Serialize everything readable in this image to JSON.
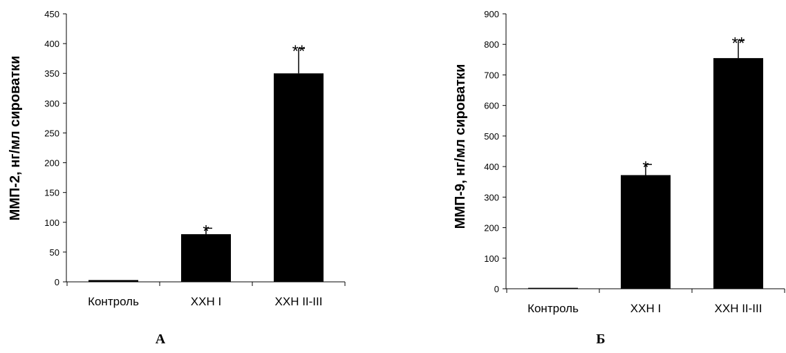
{
  "chart_data": [
    {
      "type": "bar",
      "panel_label": "А",
      "ylabel": "ММП-2, нг/мл сироватки",
      "categories": [
        "Контроль",
        "ХХН І",
        "ХХН ІІ-ІІІ"
      ],
      "values": [
        3,
        80,
        350
      ],
      "errors": [
        0,
        10,
        42
      ],
      "significance": [
        "",
        "*",
        "**"
      ],
      "ylim": [
        0,
        450
      ],
      "yticks": [
        "0",
        "50",
        "100",
        "150",
        "200",
        "250",
        "300",
        "350",
        "400",
        "450"
      ],
      "bar_color": "#000000"
    },
    {
      "type": "bar",
      "panel_label": "Б",
      "ylabel": "ММП-9, нг/мл сироватки",
      "categories": [
        "Контроль",
        "ХХН І",
        "ХХН ІІ-ІІІ"
      ],
      "values": [
        3,
        372,
        755
      ],
      "errors": [
        0,
        35,
        58
      ],
      "significance": [
        "",
        "*",
        "**"
      ],
      "ylim": [
        0,
        900
      ],
      "yticks": [
        "0",
        "100",
        "200",
        "300",
        "400",
        "500",
        "600",
        "700",
        "800",
        "900"
      ],
      "bar_color": "#000000"
    }
  ]
}
